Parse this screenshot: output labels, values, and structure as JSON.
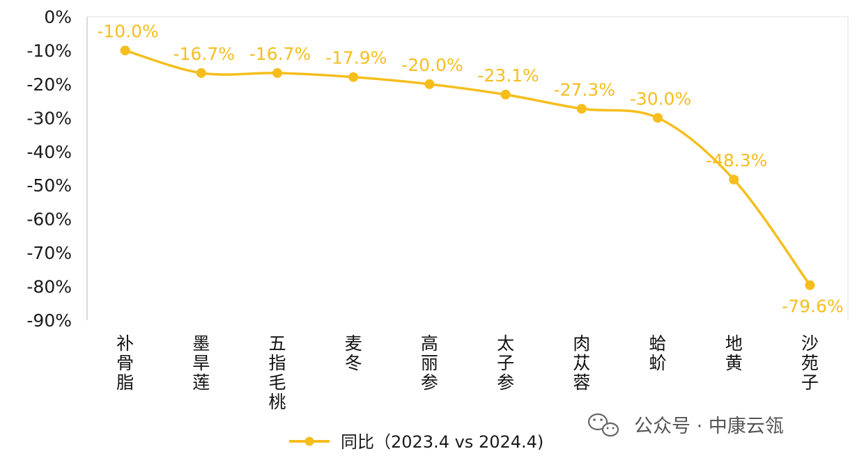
{
  "chart_data": {
    "type": "line",
    "categories": [
      "补骨脂",
      "墨旱莲",
      "五指毛桃",
      "麦冬",
      "高丽参",
      "太子参",
      "肉苁蓉",
      "蛤蚧",
      "地黄",
      "沙苑子"
    ],
    "series": [
      {
        "name": "同比（2023.4 vs 2024.4)",
        "values": [
          -10.0,
          -16.7,
          -16.7,
          -17.9,
          -20.0,
          -23.1,
          -27.3,
          -30.0,
          -48.3,
          -79.6
        ],
        "labels": [
          "-10.0%",
          "-16.7%",
          "-16.7%",
          "-17.9%",
          "-20.0%",
          "-23.1%",
          "-27.3%",
          "-30.0%",
          "-48.3%",
          "-79.6%"
        ],
        "color": "#f5be1d"
      }
    ],
    "y_ticks": [
      "0%",
      "-10%",
      "-20%",
      "-30%",
      "-40%",
      "-50%",
      "-60%",
      "-70%",
      "-80%",
      "-90%"
    ],
    "ylim": [
      -90,
      0
    ],
    "grid": false,
    "legend_position": "bottom"
  },
  "watermark": {
    "text": "公众号 · 中康云瓴",
    "icon": "wechat-icon"
  }
}
